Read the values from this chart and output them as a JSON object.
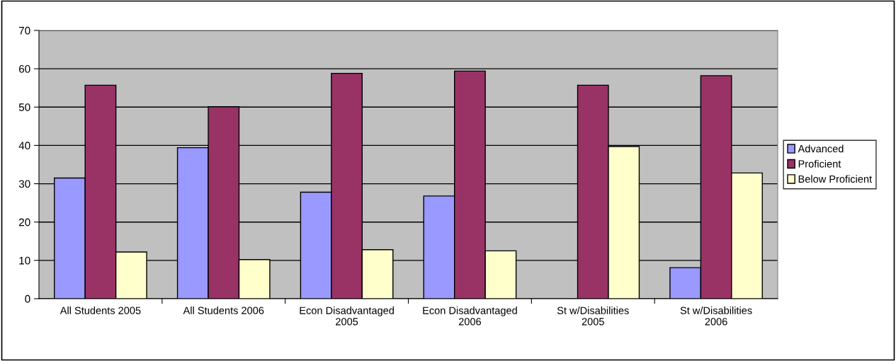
{
  "chart_data": {
    "type": "bar",
    "categories": [
      "All Students 2005",
      "All Students 2006",
      "Econ Disadvantaged\n2005",
      "Econ Disadvantaged\n2006",
      "St w/Disabilities\n2005",
      "St w/Disabilities\n2006"
    ],
    "series": [
      {
        "name": "Advanced",
        "color": "#9999ff",
        "values": [
          31.5,
          39.4,
          27.8,
          26.8,
          null,
          8.1
        ]
      },
      {
        "name": "Proficient",
        "color": "#993366",
        "values": [
          55.7,
          50.1,
          58.8,
          59.4,
          55.7,
          58.2
        ]
      },
      {
        "name": "Below Proficient",
        "color": "#ffffcc",
        "values": [
          12.2,
          10.2,
          12.8,
          12.5,
          39.7,
          32.8
        ]
      }
    ],
    "ylim": [
      0,
      70
    ],
    "yticks": [
      0,
      10,
      20,
      30,
      40,
      50,
      60,
      70
    ],
    "grid": "y",
    "legend": "right"
  }
}
